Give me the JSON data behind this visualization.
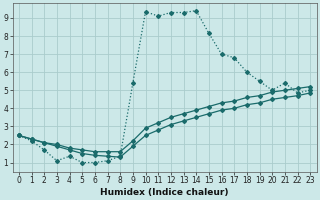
{
  "xlabel": "Humidex (Indice chaleur)",
  "bg_color": "#cce8e8",
  "grid_color": "#aacccc",
  "line_color": "#1a6b6b",
  "xlim": [
    -0.5,
    23.5
  ],
  "ylim": [
    0.5,
    9.8
  ],
  "xticks": [
    0,
    1,
    2,
    3,
    4,
    5,
    6,
    7,
    8,
    9,
    10,
    11,
    12,
    13,
    14,
    15,
    16,
    17,
    18,
    19,
    20,
    21,
    22,
    23
  ],
  "yticks": [
    1,
    2,
    3,
    4,
    5,
    6,
    7,
    8,
    9
  ],
  "line1_x": [
    0,
    1,
    2,
    3,
    4,
    5,
    6,
    7,
    8,
    9,
    10,
    11,
    12,
    13,
    14,
    15,
    16,
    17,
    18,
    19,
    20,
    21,
    22,
    23
  ],
  "line1_y": [
    2.5,
    2.2,
    1.7,
    1.1,
    1.35,
    1.0,
    1.0,
    1.1,
    1.35,
    5.4,
    9.35,
    9.1,
    9.3,
    9.3,
    9.4,
    8.15,
    7.0,
    6.8,
    6.0,
    5.5,
    5.0,
    5.4,
    4.85,
    5.0
  ],
  "line2_x": [
    0,
    1,
    2,
    3,
    4,
    5,
    6,
    7,
    8,
    9,
    10,
    11,
    12,
    13,
    14,
    15,
    16,
    17,
    18,
    19,
    20,
    21,
    22,
    23
  ],
  "line2_y": [
    2.5,
    2.3,
    2.1,
    2.0,
    1.8,
    1.7,
    1.6,
    1.6,
    1.6,
    2.2,
    2.9,
    3.2,
    3.5,
    3.7,
    3.9,
    4.1,
    4.3,
    4.4,
    4.6,
    4.7,
    4.9,
    5.0,
    5.1,
    5.2
  ],
  "line3_x": [
    0,
    1,
    2,
    3,
    4,
    5,
    6,
    7,
    8,
    9,
    10,
    11,
    12,
    13,
    14,
    15,
    16,
    17,
    18,
    19,
    20,
    21,
    22,
    23
  ],
  "line3_y": [
    2.5,
    2.3,
    2.1,
    1.9,
    1.7,
    1.5,
    1.4,
    1.35,
    1.3,
    1.9,
    2.5,
    2.8,
    3.1,
    3.3,
    3.5,
    3.7,
    3.9,
    4.0,
    4.2,
    4.3,
    4.5,
    4.6,
    4.7,
    4.85
  ]
}
